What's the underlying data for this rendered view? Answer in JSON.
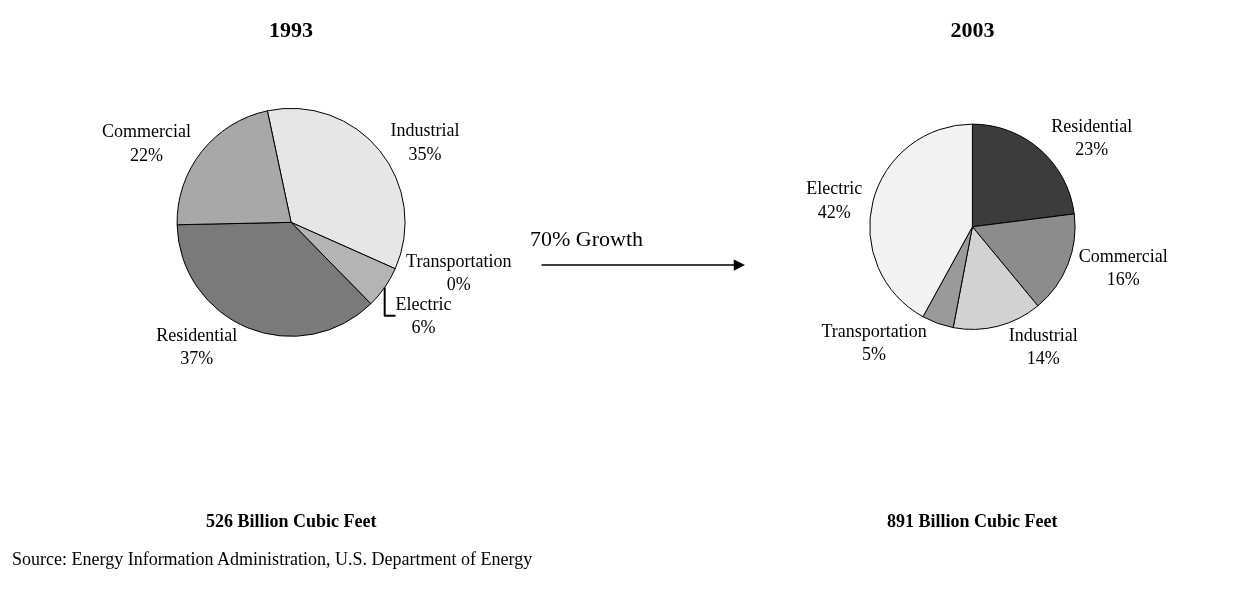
{
  "chart_data": [
    {
      "type": "pie",
      "title": "1993",
      "subtitle": "526 Billion Cubic Feet",
      "categories": [
        "Industrial",
        "Transportation",
        "Electric",
        "Residential",
        "Commercial"
      ],
      "values": [
        35,
        0,
        6,
        37,
        22
      ],
      "colors": [
        "#e6e6e6",
        "#ffffff",
        "#b4b4b4",
        "#7a7a7a",
        "#a8a8a8"
      ],
      "value_labels": [
        "35%",
        "0%",
        "6%",
        "37%",
        "22%"
      ],
      "annotations": [
        "70% Growth",
        "Source: Energy Information Administration, U.S. Department of Energy"
      ]
    },
    {
      "type": "pie",
      "title": "2003",
      "subtitle": "891 Billion Cubic Feet",
      "categories": [
        "Residential",
        "Commercial",
        "Industrial",
        "Transportation",
        "Electric"
      ],
      "values": [
        23,
        16,
        14,
        5,
        42
      ],
      "colors": [
        "#3c3c3c",
        "#8c8c8c",
        "#d2d2d2",
        "#9a9a9a",
        "#f2f2f2"
      ],
      "value_labels": [
        "23%",
        "16%",
        "14%",
        "5%",
        "42%"
      ]
    }
  ]
}
